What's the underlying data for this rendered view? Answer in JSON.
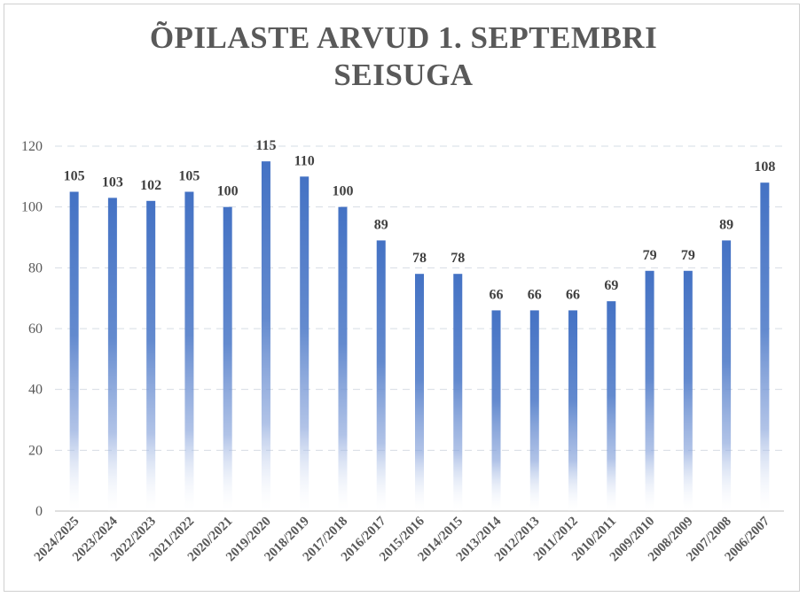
{
  "chart_data": {
    "type": "bar",
    "title_line1": "ÕPILASTE ARVUD 1. SEPTEMBRI",
    "title_line2": "SEISUGA",
    "categories": [
      "2024/2025",
      "2023/2024",
      "2022/2023",
      "2021/2022",
      "2020/2021",
      "2019/2020",
      "2018/2019",
      "2017/2018",
      "2016/2017",
      "2015/2016",
      "2014/2015",
      "2013/2014",
      "2012/2013",
      "2011/2012",
      "2010/2011",
      "2009/2010",
      "2008/2009",
      "2007/2008",
      "2006/2007"
    ],
    "values": [
      105,
      103,
      102,
      105,
      100,
      115,
      110,
      100,
      89,
      78,
      78,
      66,
      66,
      66,
      69,
      79,
      79,
      89,
      108
    ],
    "ylim": [
      0,
      120
    ],
    "yticks": [
      0,
      20,
      40,
      60,
      80,
      100,
      120
    ],
    "grid": true,
    "legend": "none",
    "bar_color": "#4472C4"
  }
}
